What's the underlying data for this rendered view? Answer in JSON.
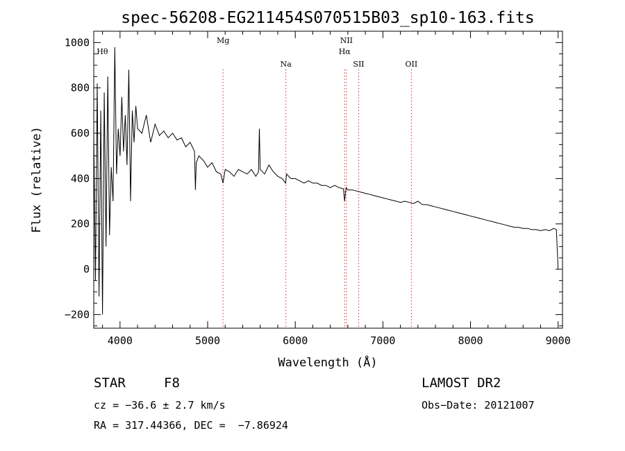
{
  "chart_data": {
    "type": "line",
    "title": "spec-56208-EG211454S070515B03_sp10-163.fits",
    "xlabel": "Wavelength (Å)",
    "ylabel": "Flux (relative)",
    "xlim": [
      3700,
      9050
    ],
    "ylim": [
      -260,
      1050
    ],
    "x_ticks": [
      4000,
      5000,
      6000,
      7000,
      8000,
      9000
    ],
    "y_ticks": [
      -200,
      0,
      200,
      400,
      600,
      800,
      1000
    ],
    "series": [
      {
        "x": [
          3700,
          3720,
          3740,
          3760,
          3780,
          3800,
          3820,
          3840,
          3860,
          3880,
          3900,
          3920,
          3940,
          3960,
          3980,
          4000,
          4020,
          4040,
          4060,
          4080,
          4100,
          4120,
          4140,
          4160,
          4180,
          4200,
          4250,
          4300,
          4350,
          4400,
          4450,
          4500,
          4550,
          4600,
          4650,
          4700,
          4750,
          4800,
          4850,
          4860,
          4870,
          4900,
          4950,
          5000,
          5050,
          5100,
          5150,
          5175,
          5200,
          5250,
          5300,
          5350,
          5400,
          5450,
          5500,
          5550,
          5580,
          5590,
          5600,
          5650,
          5700,
          5750,
          5800,
          5850,
          5890,
          5900,
          5950,
          6000,
          6050,
          6100,
          6150,
          6200,
          6250,
          6300,
          6350,
          6400,
          6450,
          6500,
          6550,
          6563,
          6580,
          6600,
          6650,
          6700,
          6750,
          6800,
          6850,
          6900,
          6950,
          7000,
          7050,
          7100,
          7150,
          7200,
          7250,
          7300,
          7350,
          7400,
          7450,
          7500,
          7550,
          7600,
          7650,
          7700,
          7750,
          7800,
          7850,
          7900,
          7950,
          8000,
          8050,
          8100,
          8150,
          8200,
          8250,
          8300,
          8350,
          8400,
          8450,
          8500,
          8550,
          8600,
          8650,
          8700,
          8750,
          8800,
          8850,
          8900,
          8950,
          8980,
          9000
        ],
        "y": [
          600,
          -50,
          820,
          -120,
          700,
          -200,
          780,
          100,
          850,
          150,
          450,
          300,
          980,
          420,
          620,
          500,
          760,
          520,
          680,
          460,
          880,
          300,
          700,
          560,
          720,
          620,
          600,
          680,
          560,
          640,
          590,
          610,
          580,
          600,
          570,
          580,
          540,
          560,
          520,
          350,
          470,
          500,
          480,
          450,
          470,
          430,
          420,
          380,
          440,
          430,
          410,
          440,
          430,
          420,
          440,
          410,
          430,
          620,
          440,
          420,
          460,
          430,
          410,
          400,
          380,
          420,
          400,
          400,
          390,
          380,
          390,
          380,
          380,
          370,
          370,
          360,
          370,
          360,
          355,
          300,
          360,
          350,
          350,
          345,
          340,
          335,
          330,
          325,
          320,
          315,
          310,
          305,
          300,
          295,
          300,
          295,
          290,
          300,
          285,
          285,
          280,
          275,
          270,
          265,
          260,
          255,
          250,
          245,
          240,
          235,
          230,
          225,
          220,
          215,
          210,
          205,
          200,
          195,
          190,
          185,
          185,
          180,
          180,
          175,
          175,
          170,
          175,
          170,
          180,
          175,
          0
        ]
      }
    ],
    "lines": [
      {
        "label": "Hθ",
        "x": 3798,
        "dotted": false
      },
      {
        "label": "Mg",
        "x": 5175,
        "dotted": true
      },
      {
        "label": "Na",
        "x": 5893,
        "dotted": true
      },
      {
        "label": "NII",
        "x": 6584,
        "dotted": true
      },
      {
        "label": "Hα",
        "x": 6563,
        "dotted": true
      },
      {
        "label": "SII",
        "x": 6724,
        "dotted": true
      },
      {
        "label": "OII",
        "x": 7325,
        "dotted": true
      }
    ],
    "grid": false
  },
  "info": {
    "object_class": "STAR",
    "subclass": "F8",
    "survey": "LAMOST DR2",
    "cz": "cz = −36.6 ± 2.7 km/s",
    "obs_date": "Obs−Date: 20121007",
    "coords": "RA = 317.44366, DEC =  −7.86924"
  }
}
